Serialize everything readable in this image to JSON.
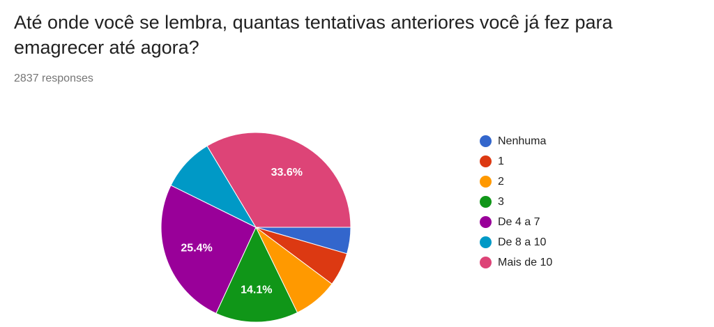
{
  "question": {
    "title": "Até onde você se lembra, quantas tentativas anteriores você já fez para emagrecer até agora?",
    "responses": "2837 responses"
  },
  "chart_data": {
    "type": "pie",
    "categories": [
      "Nenhuma",
      "1",
      "2",
      "3",
      "De 4 a 7",
      "De 8 a 10",
      "Mais de 10"
    ],
    "values": [
      4.5,
      5.7,
      7.6,
      14.1,
      25.4,
      9.1,
      33.6
    ],
    "colors": [
      "#3366cc",
      "#dc3912",
      "#ff9900",
      "#109618",
      "#990099",
      "#0099c6",
      "#dd4477"
    ],
    "data_labels": [
      "",
      "",
      "",
      "14.1%",
      "25.4%",
      "",
      "33.6%"
    ],
    "legend_position": "right",
    "start_direction": "3 o'clock, clockwise"
  }
}
